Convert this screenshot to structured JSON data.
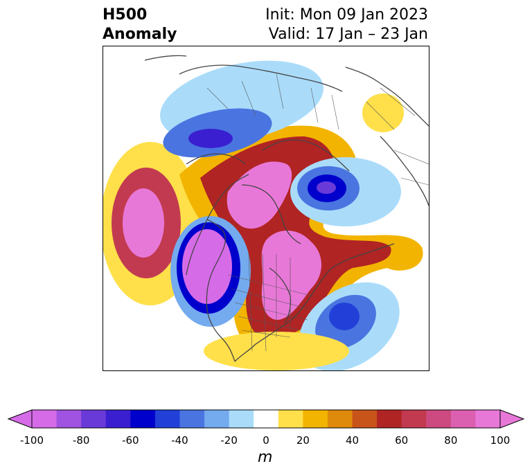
{
  "header": {
    "title_line1": "H500",
    "title_line2": "Anomaly",
    "init_text": "Init: Mon 09 Jan 2023",
    "valid_text": "Valid: 17 Jan – 23 Jan"
  },
  "map": {
    "anomalies": [
      {
        "sign": "negative",
        "region": "north-pacific",
        "peak_m": -100
      },
      {
        "sign": "negative",
        "region": "northern-europe-arctic",
        "peak_m": -60
      },
      {
        "sign": "negative",
        "region": "north-atlantic",
        "peak_m": -60
      },
      {
        "sign": "negative",
        "region": "siberia",
        "peak_m": -60
      },
      {
        "sign": "positive",
        "region": "east-pacific",
        "peak_m": 100
      },
      {
        "sign": "positive",
        "region": "canada-arctic",
        "peak_m": 100
      },
      {
        "sign": "positive",
        "region": "eastern-canada",
        "peak_m": 100
      },
      {
        "sign": "positive",
        "region": "asia-arctic",
        "peak_m": 70
      }
    ]
  },
  "colorbar": {
    "unit_label": "m",
    "ticks": [
      "-100",
      "-80",
      "-60",
      "-40",
      "-20",
      "0",
      "20",
      "40",
      "60",
      "80",
      "100"
    ],
    "bounds": [
      -100,
      -90,
      -80,
      -70,
      -60,
      -50,
      -40,
      -30,
      -20,
      -10,
      10,
      20,
      30,
      40,
      50,
      60,
      70,
      80,
      90,
      100
    ],
    "colors": [
      "#d66be8",
      "#a052e0",
      "#6a3ad8",
      "#3a1fd0",
      "#0000cc",
      "#2240d8",
      "#4a75e0",
      "#74aaee",
      "#aadcfa",
      "#ffffff",
      "#ffe04a",
      "#f2b400",
      "#e08a0c",
      "#c8541a",
      "#b02424",
      "#c23a50",
      "#cc4a80",
      "#dc60b0",
      "#e878d8"
    ],
    "under_color": "#d66be8",
    "over_color": "#e878d8"
  }
}
